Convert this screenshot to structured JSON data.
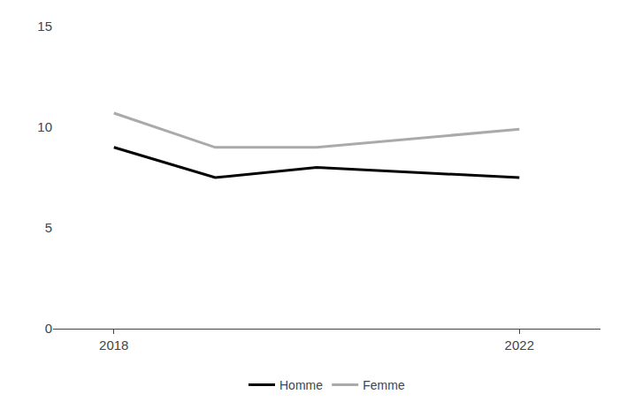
{
  "chart_data": {
    "type": "line",
    "x": [
      2018,
      2019,
      2020,
      2022
    ],
    "series": [
      {
        "name": "Homme",
        "color": "#000000",
        "values": [
          9.0,
          7.5,
          8.0,
          7.5
        ]
      },
      {
        "name": "Femme",
        "color": "#aaaaaa",
        "values": [
          10.7,
          9.0,
          9.0,
          9.9
        ]
      }
    ],
    "xlim": [
      2017.4,
      2022.8
    ],
    "xticks": [
      2018,
      2022
    ],
    "ylim": [
      0,
      15
    ],
    "yticks": [
      0,
      5,
      10,
      15
    ],
    "grid": false,
    "legend": "bottom"
  }
}
